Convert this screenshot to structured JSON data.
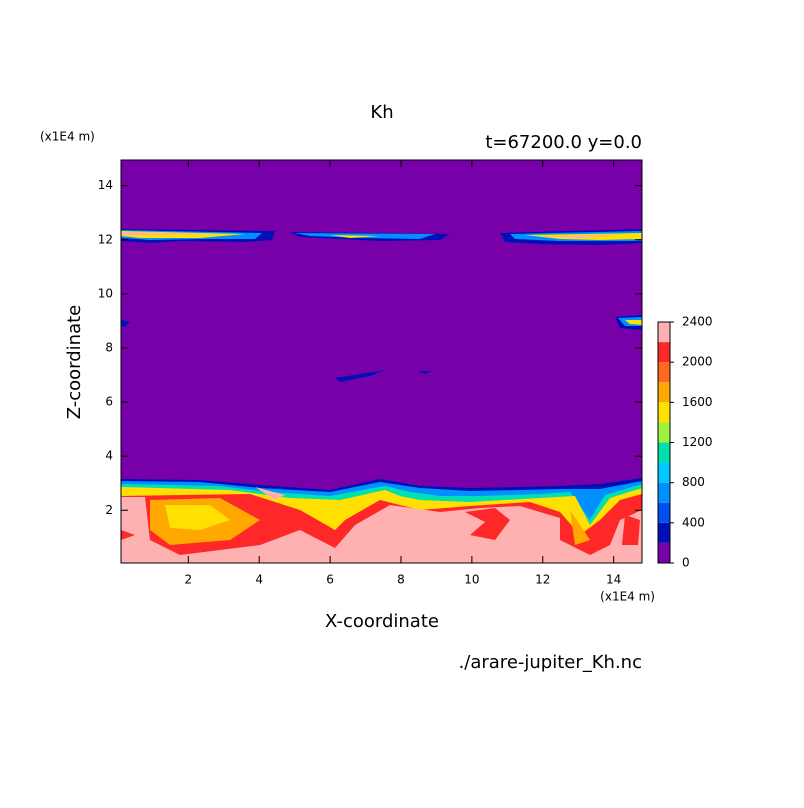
{
  "chart_data": {
    "type": "contour",
    "title": "Kh",
    "subtitle": "t=67200.0 y=0.0",
    "x_label": "X-coordinate",
    "y_label": "Z-coordinate",
    "x_unit": "(x1E4 m)",
    "y_unit": "(x1E4 m)",
    "source": "./arare-jupiter_Kh.nc",
    "xlim": [
      0.1,
      14.8
    ],
    "ylim": [
      0.05,
      14.95
    ],
    "xticks": [
      2,
      4,
      6,
      8,
      10,
      12,
      14
    ],
    "yticks": [
      2,
      4,
      6,
      8,
      10,
      12,
      14
    ],
    "levels": [
      0,
      200,
      400,
      600,
      800,
      1000,
      1200,
      1400,
      1600,
      1800,
      2000,
      2200,
      2400
    ],
    "colors": [
      "#7800a8",
      "#0010b8",
      "#0050f0",
      "#0090ff",
      "#00c8ff",
      "#00e0b0",
      "#a0f040",
      "#ffe000",
      "#ffa800",
      "#ff6820",
      "#ff2828",
      "#ffb0b0"
    ],
    "colorbar_ticks": [
      0,
      400,
      800,
      1200,
      1600,
      2000,
      2400
    ]
  }
}
